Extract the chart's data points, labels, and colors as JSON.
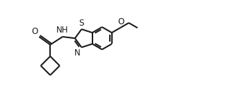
{
  "bg_color": "#ffffff",
  "line_color": "#1a1a1a",
  "line_width": 1.5,
  "font_size": 8.5,
  "xlim": [
    -0.5,
    10.5
  ],
  "ylim": [
    0.5,
    5.8
  ],
  "figsize": [
    3.38,
    1.4
  ],
  "dpi": 100
}
